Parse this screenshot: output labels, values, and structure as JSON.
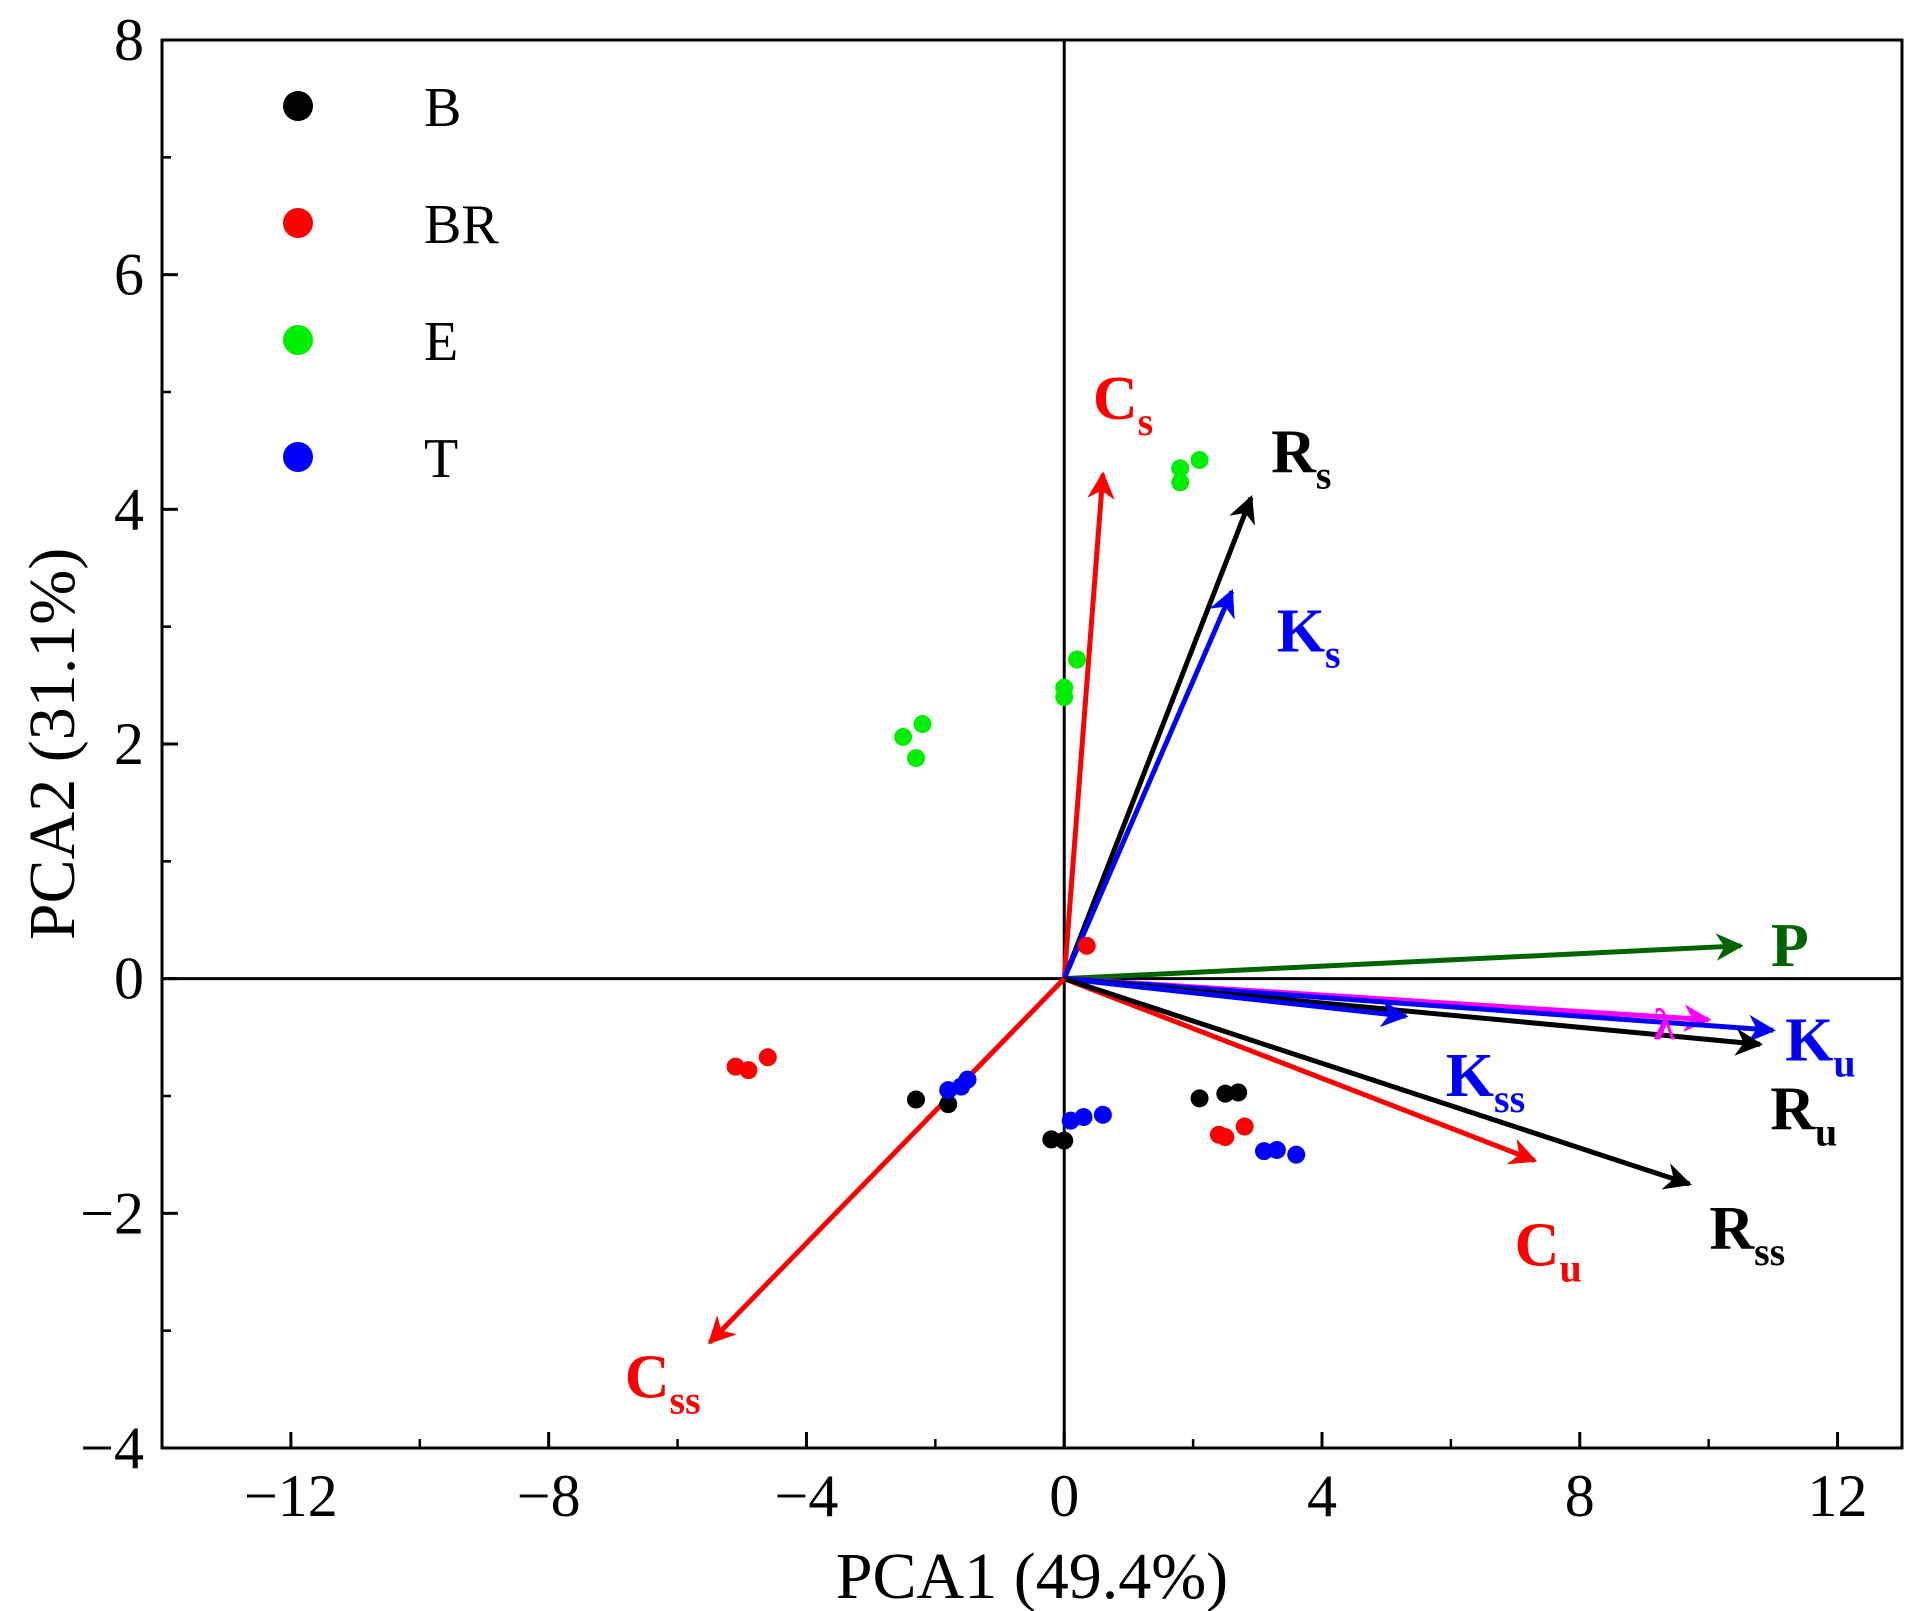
{
  "chart_data": {
    "type": "scatter",
    "xlabel": "PCA1 (49.4%)",
    "ylabel": "PCA2 (31.1%)",
    "xlim": [
      -14,
      13
    ],
    "ylim": [
      -4,
      8
    ],
    "xticks": [
      -12,
      -8,
      -4,
      0,
      4,
      8,
      12
    ],
    "yticks": [
      -4,
      -2,
      0,
      2,
      4,
      6,
      8
    ],
    "x_minor_step": 2,
    "y_minor_step": 1,
    "zero_lines": true,
    "legend_position": "top-left",
    "series": [
      {
        "name": "B",
        "color": "#000000",
        "points": [
          [
            -2.3,
            -1.03
          ],
          [
            -1.8,
            -1.07
          ],
          [
            -0.2,
            -1.37
          ],
          [
            0.0,
            -1.38
          ],
          [
            2.1,
            -1.02
          ],
          [
            2.5,
            -0.98
          ],
          [
            2.7,
            -0.97
          ]
        ]
      },
      {
        "name": "BR",
        "color": "#ff0000",
        "points": [
          [
            -5.1,
            -0.75
          ],
          [
            -4.9,
            -0.78
          ],
          [
            -4.6,
            -0.67
          ],
          [
            0.35,
            0.28
          ],
          [
            2.4,
            -1.33
          ],
          [
            2.5,
            -1.35
          ],
          [
            2.8,
            -1.26
          ]
        ]
      },
      {
        "name": "E",
        "color": "#00ee00",
        "points": [
          [
            -2.5,
            2.06
          ],
          [
            -2.3,
            1.88
          ],
          [
            -2.2,
            2.17
          ],
          [
            0.0,
            2.4
          ],
          [
            0.0,
            2.48
          ],
          [
            0.2,
            2.72
          ],
          [
            1.8,
            4.23
          ],
          [
            1.8,
            4.35
          ],
          [
            2.1,
            4.42
          ]
        ]
      },
      {
        "name": "T",
        "color": "#0000ff",
        "points": [
          [
            -1.8,
            -0.95
          ],
          [
            -1.6,
            -0.92
          ],
          [
            -1.5,
            -0.86
          ],
          [
            0.1,
            -1.21
          ],
          [
            0.3,
            -1.18
          ],
          [
            0.6,
            -1.16
          ],
          [
            3.1,
            -1.47
          ],
          [
            3.3,
            -1.46
          ],
          [
            3.6,
            -1.5
          ]
        ]
      }
    ],
    "loadings": [
      {
        "main": "C",
        "sub": "s",
        "color": "#ff0000",
        "x": 0.6,
        "y": 4.3
      },
      {
        "main": "R",
        "sub": "s",
        "color": "#000000",
        "x": 2.9,
        "y": 4.1
      },
      {
        "main": "K",
        "sub": "s",
        "color": "#0000ff",
        "x": 2.6,
        "y": 3.3
      },
      {
        "main": "P",
        "sub": "",
        "color": "#006400",
        "x": 10.5,
        "y": 0.28
      },
      {
        "main": "λ",
        "sub": "",
        "color": "#ff00ff",
        "x": 10.0,
        "y": -0.35
      },
      {
        "main": "K",
        "sub": "u",
        "color": "#0000ff",
        "x": 11.0,
        "y": -0.44
      },
      {
        "main": "R",
        "sub": "u",
        "color": "#000000",
        "x": 10.8,
        "y": -0.56
      },
      {
        "main": "K",
        "sub": "ss",
        "color": "#0000ff",
        "x": 5.3,
        "y": -0.32
      },
      {
        "main": "C",
        "sub": "u",
        "color": "#ff0000",
        "x": 7.3,
        "y": -1.55
      },
      {
        "main": "R",
        "sub": "ss",
        "color": "#000000",
        "x": 9.7,
        "y": -1.75
      },
      {
        "main": "C",
        "sub": "ss",
        "color": "#ff0000",
        "x": -5.5,
        "y": -3.1
      }
    ]
  }
}
